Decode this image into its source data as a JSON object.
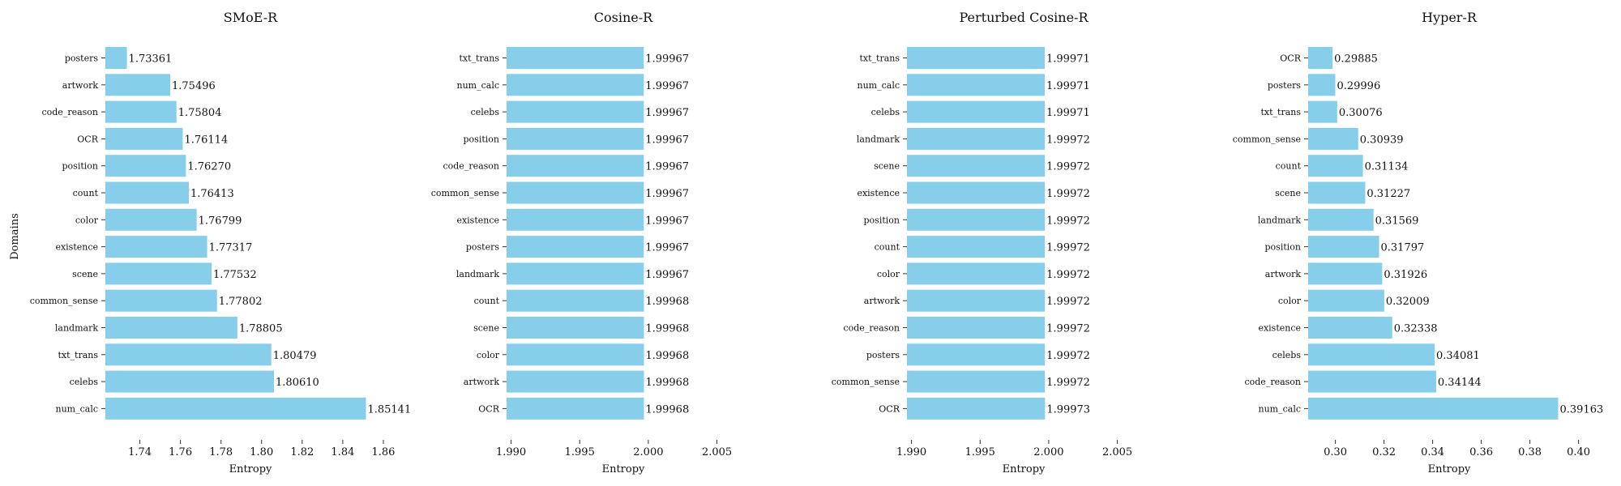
{
  "ylabel_shared": "Domains",
  "chart_data": [
    {
      "type": "bar",
      "orientation": "horizontal",
      "title": "SMoE-R",
      "xlabel": "Entropy",
      "xlim": [
        1.723,
        1.866
      ],
      "xticks": [
        "1.74",
        "1.76",
        "1.78",
        "1.80",
        "1.82",
        "1.84",
        "1.86"
      ],
      "xtick_values": [
        1.74,
        1.76,
        1.78,
        1.8,
        1.82,
        1.84,
        1.86
      ],
      "categories": [
        "posters",
        "artwork",
        "code_reason",
        "OCR",
        "position",
        "count",
        "color",
        "existence",
        "scene",
        "common_sense",
        "landmark",
        "txt_trans",
        "celebs",
        "num_calc"
      ],
      "values": [
        1.73361,
        1.75496,
        1.75804,
        1.76114,
        1.7627,
        1.76413,
        1.76799,
        1.77317,
        1.77532,
        1.77802,
        1.78805,
        1.80479,
        1.8061,
        1.85141
      ],
      "labels": [
        "1.73361",
        "1.75496",
        "1.75804",
        "1.76114",
        "1.76270",
        "1.76413",
        "1.76799",
        "1.77317",
        "1.77532",
        "1.77802",
        "1.78805",
        "1.80479",
        "1.80610",
        "1.85141"
      ]
    },
    {
      "type": "bar",
      "orientation": "horizontal",
      "title": "Cosine-R",
      "xlabel": "Entropy",
      "xlim": [
        1.98967,
        2.00668
      ],
      "xticks": [
        "1.990",
        "1.995",
        "2.000",
        "2.005"
      ],
      "xtick_values": [
        1.99,
        1.995,
        2.0,
        2.005
      ],
      "categories": [
        "txt_trans",
        "num_calc",
        "celebs",
        "position",
        "code_reason",
        "common_sense",
        "existence",
        "posters",
        "landmark",
        "count",
        "scene",
        "color",
        "artwork",
        "OCR"
      ],
      "values": [
        1.99967,
        1.99967,
        1.99967,
        1.99967,
        1.99967,
        1.99967,
        1.99967,
        1.99967,
        1.99967,
        1.99968,
        1.99968,
        1.99968,
        1.99968,
        1.99968
      ],
      "labels": [
        "1.99967",
        "1.99967",
        "1.99967",
        "1.99967",
        "1.99967",
        "1.99967",
        "1.99967",
        "1.99967",
        "1.99967",
        "1.99968",
        "1.99968",
        "1.99968",
        "1.99968",
        "1.99968"
      ]
    },
    {
      "type": "bar",
      "orientation": "horizontal",
      "title": "Perturbed Cosine-R",
      "xlabel": "Entropy",
      "xlim": [
        1.98967,
        2.00668
      ],
      "xticks": [
        "1.990",
        "1.995",
        "2.000",
        "2.005"
      ],
      "xtick_values": [
        1.99,
        1.995,
        2.0,
        2.005
      ],
      "categories": [
        "txt_trans",
        "num_calc",
        "celebs",
        "landmark",
        "scene",
        "existence",
        "position",
        "count",
        "color",
        "artwork",
        "code_reason",
        "posters",
        "common_sense",
        "OCR"
      ],
      "values": [
        1.99971,
        1.99971,
        1.99971,
        1.99972,
        1.99972,
        1.99972,
        1.99972,
        1.99972,
        1.99972,
        1.99972,
        1.99972,
        1.99972,
        1.99972,
        1.99973
      ],
      "labels": [
        "1.99971",
        "1.99971",
        "1.99971",
        "1.99972",
        "1.99972",
        "1.99972",
        "1.99972",
        "1.99972",
        "1.99972",
        "1.99972",
        "1.99972",
        "1.99972",
        "1.99972",
        "1.99973"
      ]
    },
    {
      "type": "bar",
      "orientation": "horizontal",
      "title": "Hyper-R",
      "xlabel": "Entropy",
      "xlim": [
        0.2888,
        0.4048
      ],
      "xticks": [
        "0.30",
        "0.32",
        "0.34",
        "0.36",
        "0.38",
        "0.40"
      ],
      "xtick_values": [
        0.3,
        0.32,
        0.34,
        0.36,
        0.38,
        0.4
      ],
      "categories": [
        "OCR",
        "posters",
        "txt_trans",
        "common_sense",
        "count",
        "scene",
        "landmark",
        "position",
        "artwork",
        "color",
        "existence",
        "celebs",
        "code_reason",
        "num_calc"
      ],
      "values": [
        0.29885,
        0.29996,
        0.30076,
        0.30939,
        0.31134,
        0.31227,
        0.31569,
        0.31797,
        0.31926,
        0.32009,
        0.32338,
        0.34081,
        0.34144,
        0.39163
      ],
      "labels": [
        "0.29885",
        "0.29996",
        "0.30076",
        "0.30939",
        "0.31134",
        "0.31227",
        "0.31569",
        "0.31797",
        "0.31926",
        "0.32009",
        "0.32338",
        "0.34081",
        "0.34144",
        "0.39163"
      ]
    }
  ]
}
